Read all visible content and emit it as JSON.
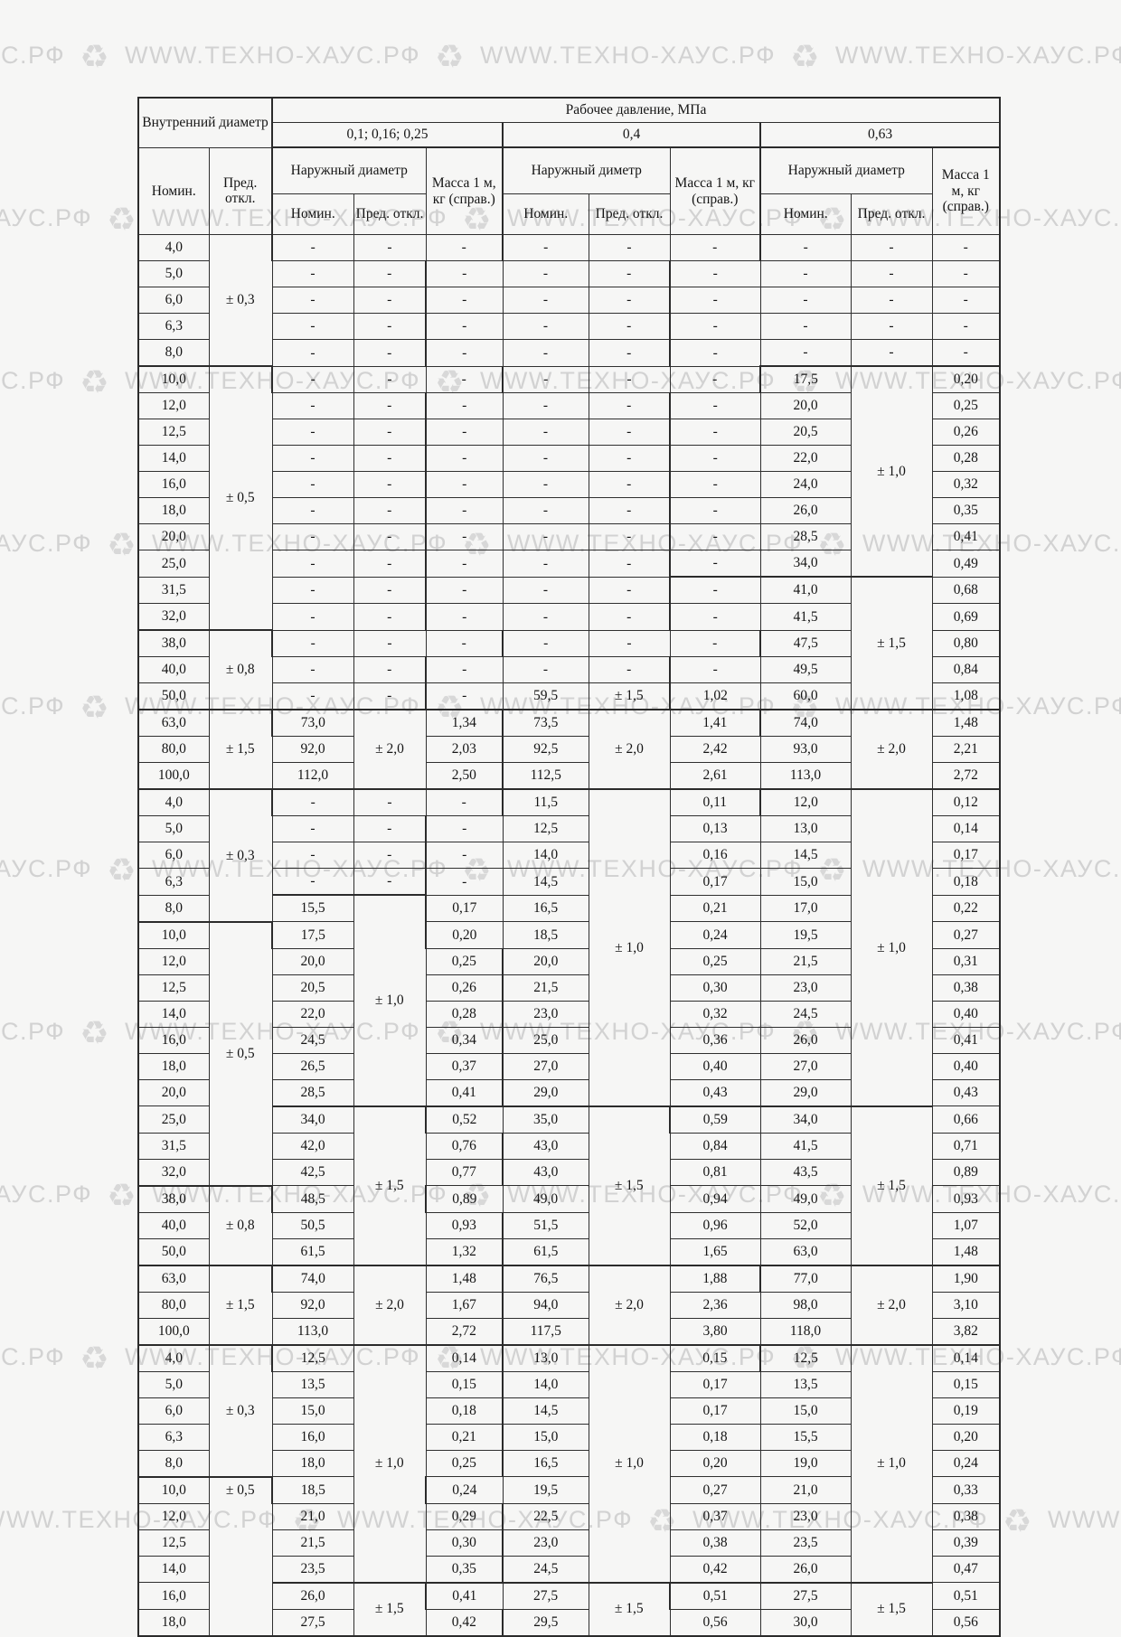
{
  "watermark": {
    "text": "WWW.ТЕХНО-ХАУС.РФ",
    "icon": "recycle-icon",
    "color": "#d2d2d2"
  },
  "table": {
    "inner_diameter": "Внутренний диаметр",
    "working_pressure": "Рабочее давление, МПа",
    "pressures": [
      "0,1; 0,16; 0,25",
      "0,4",
      "0,63"
    ],
    "outer": [
      "Наружный диаметр",
      "Наружный диметр",
      "Наружный диаметр"
    ],
    "mass": "Масса 1 м, кг (справ.)",
    "nominal": "Номин.",
    "tolerance": "Пред. откл.",
    "rows": [
      {
        "c": [
          "4,0",
          {
            "v": "± 0,3",
            "rs": 5
          },
          "-",
          "-",
          "-",
          "-",
          "-",
          "-",
          "-",
          "-",
          "-"
        ]
      },
      {
        "c": [
          "5,0",
          null,
          "-",
          "-",
          "-",
          "-",
          "-",
          "-",
          "-",
          "-",
          "-"
        ]
      },
      {
        "c": [
          "6,0",
          null,
          "-",
          "-",
          "-",
          "-",
          "-",
          "-",
          "-",
          "-",
          "-"
        ]
      },
      {
        "c": [
          "6,3",
          null,
          "-",
          "-",
          "-",
          "-",
          "-",
          "-",
          "-",
          "-",
          "-"
        ]
      },
      {
        "c": [
          "8,0",
          null,
          "-",
          "-",
          "-",
          "-",
          "-",
          "-",
          "-",
          "-",
          "-"
        ]
      },
      {
        "c": [
          "10,0",
          {
            "v": "± 0,5",
            "rs": 10
          },
          "-",
          "-",
          "-",
          "-",
          "-",
          "-",
          "17,5",
          {
            "v": "± 1,0",
            "rs": 8
          },
          "0,20"
        ],
        "sep": [
          0,
          1,
          8,
          9,
          10
        ]
      },
      {
        "c": [
          "12,0",
          null,
          "-",
          "-",
          "-",
          "-",
          "-",
          "-",
          "20,0",
          null,
          "0,25"
        ]
      },
      {
        "c": [
          "12,5",
          null,
          "-",
          "-",
          "-",
          "-",
          "-",
          "-",
          "20,5",
          null,
          "0,26"
        ]
      },
      {
        "c": [
          "14,0",
          null,
          "-",
          "-",
          "-",
          "-",
          "-",
          "-",
          "22,0",
          null,
          "0,28"
        ]
      },
      {
        "c": [
          "16,0",
          null,
          "-",
          "-",
          "-",
          "-",
          "-",
          "-",
          "24,0",
          null,
          "0,32"
        ]
      },
      {
        "c": [
          "18,0",
          null,
          "-",
          "-",
          "-",
          "-",
          "-",
          "-",
          "26,0",
          null,
          "0,35"
        ]
      },
      {
        "c": [
          "20,0",
          null,
          "-",
          "-",
          "-",
          "-",
          "-",
          "-",
          "28,5",
          null,
          "0,41"
        ]
      },
      {
        "c": [
          "25,0",
          null,
          "-",
          "-",
          "-",
          "-",
          "-",
          "-",
          "34,0",
          null,
          "0,49"
        ]
      },
      {
        "c": [
          "31,5",
          null,
          "-",
          "-",
          "-",
          "-",
          "-",
          "-",
          "41,0",
          {
            "v": "± 1,5",
            "rs": 5
          },
          "0,68"
        ],
        "sep": [
          8,
          9,
          10
        ]
      },
      {
        "c": [
          "32,0",
          null,
          "-",
          "-",
          "-",
          "-",
          "-",
          "-",
          "41,5",
          null,
          "0,69"
        ]
      },
      {
        "c": [
          "38,0",
          {
            "v": "± 0,8",
            "rs": 3
          },
          "-",
          "-",
          "-",
          "-",
          "-",
          "-",
          "47,5",
          null,
          "0,80"
        ],
        "sep": [
          0,
          1
        ]
      },
      {
        "c": [
          "40,0",
          null,
          "-",
          "-",
          "-",
          "-",
          "-",
          "-",
          "49,5",
          null,
          "0,84"
        ]
      },
      {
        "c": [
          "50,0",
          null,
          "-",
          "-",
          "-",
          "59,5",
          "± 1,5",
          "1,02",
          "60,0",
          null,
          "1,08"
        ]
      },
      {
        "c": [
          "63,0",
          {
            "v": "± 1,5",
            "rs": 3
          },
          "73,0",
          {
            "v": "± 2,0",
            "rs": 3
          },
          "1,34",
          "73,5",
          {
            "v": "± 2,0",
            "rs": 3
          },
          "1,41",
          "74,0",
          {
            "v": "± 2,0",
            "rs": 3
          },
          "1,48"
        ],
        "sep": [
          0,
          1,
          2,
          3,
          4,
          5,
          6,
          7,
          8,
          9,
          10
        ]
      },
      {
        "c": [
          "80,0",
          null,
          "92,0",
          null,
          "2,03",
          "92,5",
          null,
          "2,42",
          "93,0",
          null,
          "2,21"
        ]
      },
      {
        "c": [
          "100,0",
          null,
          "112,0",
          null,
          "2,50",
          "112,5",
          null,
          "2,61",
          "113,0",
          null,
          "2,72"
        ]
      },
      {
        "c": [
          "4,0",
          {
            "v": "± 0,3",
            "rs": 5
          },
          "-",
          "-",
          "-",
          "11,5",
          {
            "v": "± 1,0",
            "rs": 12
          },
          "0,11",
          "12,0",
          {
            "v": "± 1,0",
            "rs": 12
          },
          "0,12"
        ],
        "sep": [
          0,
          1,
          2,
          3,
          4,
          5,
          6,
          7,
          8,
          9,
          10
        ]
      },
      {
        "c": [
          "5,0",
          null,
          "-",
          "-",
          "-",
          "12,5",
          null,
          "0,13",
          "13,0",
          null,
          "0,14"
        ]
      },
      {
        "c": [
          "6,0",
          null,
          "-",
          "-",
          "-",
          "14,0",
          null,
          "0,16",
          "14,5",
          null,
          "0,17"
        ]
      },
      {
        "c": [
          "6,3",
          null,
          "-",
          "-",
          "-",
          "14,5",
          null,
          "0,17",
          "15,0",
          null,
          "0,18"
        ]
      },
      {
        "c": [
          "8,0",
          null,
          "15,5",
          {
            "v": "± 1,0",
            "rs": 8
          },
          "0,17",
          "16,5",
          null,
          "0,21",
          "17,0",
          null,
          "0,22"
        ],
        "sep": [
          2,
          3,
          4
        ]
      },
      {
        "c": [
          "10,0",
          {
            "v": "± 0,5",
            "rs": 10
          },
          "17,5",
          null,
          "0,20",
          "18,5",
          null,
          "0,24",
          "19,5",
          null,
          "0,27"
        ],
        "sep": [
          0,
          1
        ]
      },
      {
        "c": [
          "12,0",
          null,
          "20,0",
          null,
          "0,25",
          "20,0",
          null,
          "0,25",
          "21,5",
          null,
          "0,31"
        ]
      },
      {
        "c": [
          "12,5",
          null,
          "20,5",
          null,
          "0,26",
          "21,5",
          null,
          "0,30",
          "23,0",
          null,
          "0,38"
        ]
      },
      {
        "c": [
          "14,0",
          null,
          "22,0",
          null,
          "0,28",
          "23,0",
          null,
          "0,32",
          "24,5",
          null,
          "0,40"
        ]
      },
      {
        "c": [
          "16,0",
          null,
          "24,5",
          null,
          "0,34",
          "25,0",
          null,
          "0,36",
          "26,0",
          null,
          "0,41"
        ]
      },
      {
        "c": [
          "18,0",
          null,
          "26,5",
          null,
          "0,37",
          "27,0",
          null,
          "0,40",
          "27,0",
          null,
          "0,40"
        ]
      },
      {
        "c": [
          "20,0",
          null,
          "28,5",
          null,
          "0,41",
          "29,0",
          null,
          "0,43",
          "29,0",
          null,
          "0,43"
        ]
      },
      {
        "c": [
          "25,0",
          null,
          "34,0",
          {
            "v": "± 1,5",
            "rs": 6
          },
          "0,52",
          "35,0",
          {
            "v": "± 1,5",
            "rs": 6
          },
          "0,59",
          "34,0",
          {
            "v": "± 1,5",
            "rs": 6
          },
          "0,66"
        ],
        "sep": [
          2,
          3,
          4,
          5,
          6,
          7,
          8,
          9,
          10
        ]
      },
      {
        "c": [
          "31,5",
          null,
          "42,0",
          null,
          "0,76",
          "43,0",
          null,
          "0,84",
          "41,5",
          null,
          "0,71"
        ]
      },
      {
        "c": [
          "32,0",
          null,
          "42,5",
          null,
          "0,77",
          "43,0",
          null,
          "0,81",
          "43,5",
          null,
          "0,89"
        ]
      },
      {
        "c": [
          "38,0",
          {
            "v": "± 0,8",
            "rs": 3
          },
          "48,5",
          null,
          "0,89",
          "49,0",
          null,
          "0,94",
          "49,0",
          null,
          "0,93"
        ],
        "sep": [
          0,
          1
        ]
      },
      {
        "c": [
          "40,0",
          null,
          "50,5",
          null,
          "0,93",
          "51,5",
          null,
          "0,96",
          "52,0",
          null,
          "1,07"
        ]
      },
      {
        "c": [
          "50,0",
          null,
          "61,5",
          null,
          "1,32",
          "61,5",
          null,
          "1,65",
          "63,0",
          null,
          "1,48"
        ]
      },
      {
        "c": [
          "63,0",
          {
            "v": "± 1,5",
            "rs": 3
          },
          "74,0",
          {
            "v": "± 2,0",
            "rs": 3
          },
          "1,48",
          "76,5",
          {
            "v": "± 2,0",
            "rs": 3
          },
          "1,88",
          "77,0",
          {
            "v": "± 2,0",
            "rs": 3
          },
          "1,90"
        ],
        "sep": [
          0,
          1,
          2,
          3,
          4,
          5,
          6,
          7,
          8,
          9,
          10
        ]
      },
      {
        "c": [
          "80,0",
          null,
          "92,0",
          null,
          "1,67",
          "94,0",
          null,
          "2,36",
          "98,0",
          null,
          "3,10"
        ]
      },
      {
        "c": [
          "100,0",
          null,
          "113,0",
          null,
          "2,72",
          "117,5",
          null,
          "3,80",
          "118,0",
          null,
          "3,82"
        ]
      },
      {
        "c": [
          "4,0",
          {
            "v": "± 0,3",
            "rs": 5
          },
          "12,5",
          {
            "v": "± 1,0",
            "rs": 9
          },
          "0,14",
          "13,0",
          {
            "v": "± 1,0",
            "rs": 9
          },
          "0,15",
          "12,5",
          {
            "v": "± 1,0",
            "rs": 9
          },
          "0,14"
        ],
        "sep": [
          0,
          1,
          2,
          3,
          4,
          5,
          6,
          7,
          8,
          9,
          10
        ]
      },
      {
        "c": [
          "5,0",
          null,
          "13,5",
          null,
          "0,15",
          "14,0",
          null,
          "0,17",
          "13,5",
          null,
          "0,15"
        ]
      },
      {
        "c": [
          "6,0",
          null,
          "15,0",
          null,
          "0,18",
          "14,5",
          null,
          "0,17",
          "15,0",
          null,
          "0,19"
        ]
      },
      {
        "c": [
          "6,3",
          null,
          "16,0",
          null,
          "0,21",
          "15,0",
          null,
          "0,18",
          "15,5",
          null,
          "0,20"
        ]
      },
      {
        "c": [
          "8,0",
          null,
          "18,0",
          null,
          "0,25",
          "16,5",
          null,
          "0,20",
          "19,0",
          null,
          "0,24"
        ]
      },
      {
        "c": [
          "10,0",
          {
            "v": "± 0,5",
            "rs": 6,
            "top": true
          },
          "18,5",
          null,
          "0,24",
          "19,5",
          null,
          "0,27",
          "21,0",
          null,
          "0,33"
        ],
        "sep": [
          0,
          1
        ]
      },
      {
        "c": [
          "12,0",
          null,
          "21,0",
          null,
          "0,29",
          "22,5",
          null,
          "0,37",
          "23,0",
          null,
          "0,38"
        ]
      },
      {
        "c": [
          "12,5",
          null,
          "21,5",
          null,
          "0,30",
          "23,0",
          null,
          "0,38",
          "23,5",
          null,
          "0,39"
        ]
      },
      {
        "c": [
          "14,0",
          null,
          "23,5",
          null,
          "0,35",
          "24,5",
          null,
          "0,42",
          "26,0",
          null,
          "0,47"
        ]
      },
      {
        "c": [
          "16,0",
          null,
          "26,0",
          {
            "v": "± 1,5",
            "rs": 2
          },
          "0,41",
          "27,5",
          {
            "v": "± 1,5",
            "rs": 2
          },
          "0,51",
          "27,5",
          {
            "v": "± 1,5",
            "rs": 2
          },
          "0,51"
        ],
        "sep": [
          2,
          3,
          4,
          5,
          6,
          7,
          8,
          9,
          10
        ]
      },
      {
        "c": [
          "18,0",
          null,
          "27,5",
          null,
          "0,42",
          "29,5",
          null,
          "0,56",
          "30,0",
          null,
          "0,56"
        ]
      }
    ]
  }
}
